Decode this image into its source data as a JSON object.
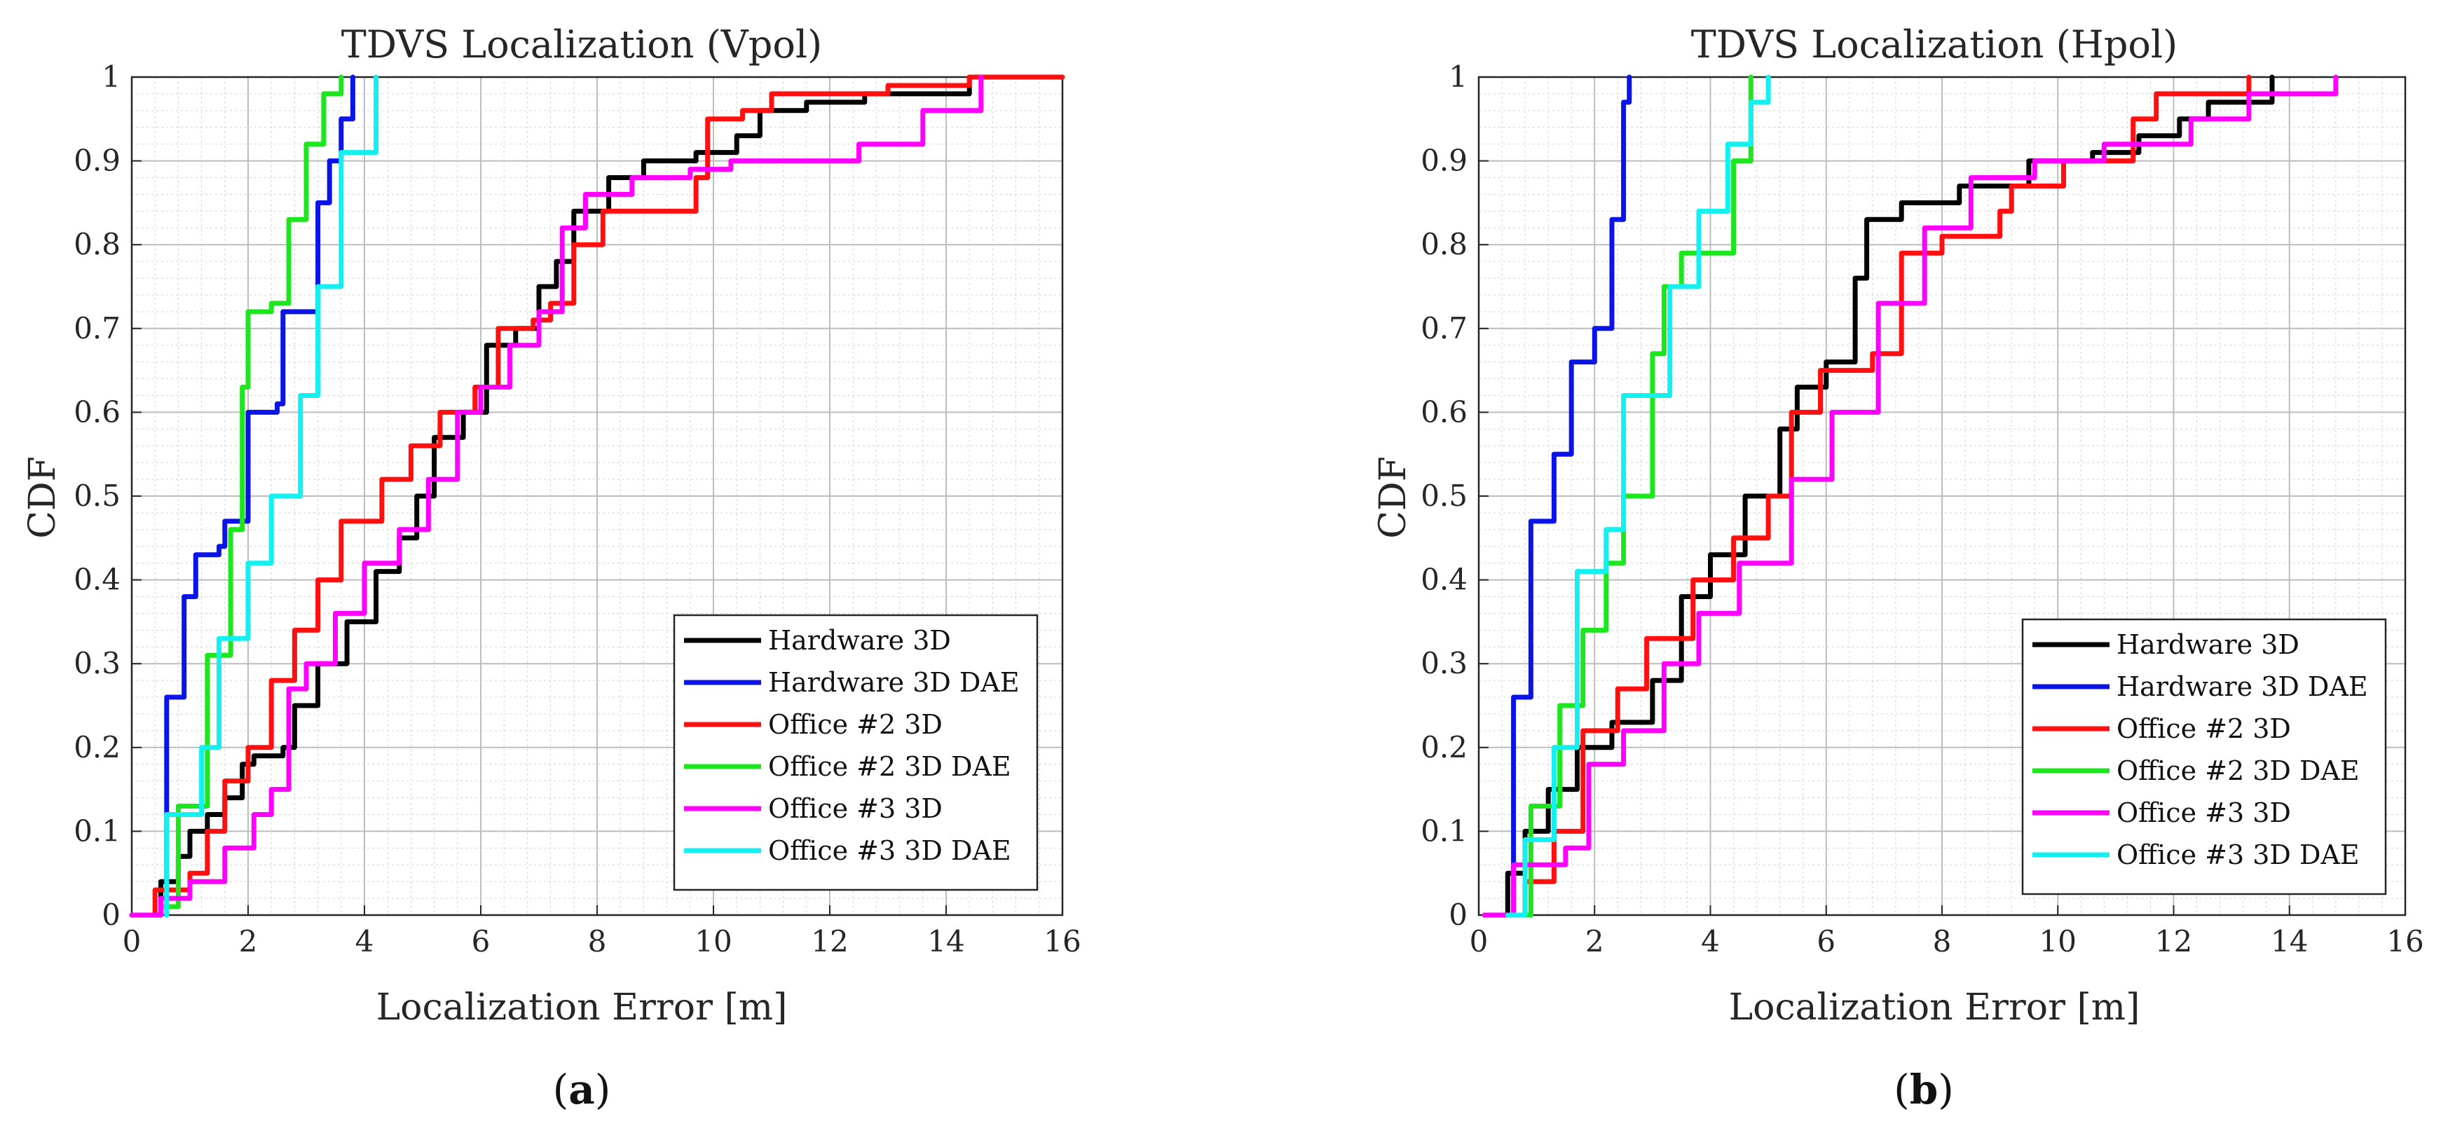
{
  "colors": {
    "hardware_3d": "#000000",
    "hardware_3d_dae": "#0a14e6",
    "office2_3d": "#ff1010",
    "office2_3d_dae": "#1ee61e",
    "office3_3d": "#ff00ff",
    "office3_3d_dae": "#14f0f0"
  },
  "chart_data": [
    {
      "type": "line",
      "title": "TDVS Localization (Vpol)",
      "xlabel": "Localization Error [m]",
      "ylabel": "CDF",
      "xlim": [
        0,
        16
      ],
      "ylim": [
        0,
        1
      ],
      "xticks": [
        "0",
        "2",
        "4",
        "6",
        "8",
        "10",
        "12",
        "14",
        "16"
      ],
      "yticks": [
        "0",
        "0.1",
        "0.2",
        "0.3",
        "0.4",
        "0.5",
        "0.6",
        "0.7",
        "0.8",
        "0.9",
        "1"
      ],
      "grid": true,
      "legend_position": "bottom-right",
      "caption": "(a)",
      "caption_letter": "a",
      "series": [
        {
          "name": "Hardware 3D",
          "color_key": "hardware_3d",
          "x": [
            0.1,
            0.5,
            0.8,
            1.0,
            1.3,
            1.6,
            1.9,
            2.1,
            2.6,
            2.8,
            3.2,
            3.7,
            4.2,
            4.6,
            4.9,
            5.2,
            5.7,
            6.1,
            6.6,
            7.0,
            7.3,
            7.6,
            8.2,
            8.8,
            9.7,
            10.4,
            10.8,
            11.6,
            12.6,
            14.4
          ],
          "y": [
            0.0,
            0.04,
            0.07,
            0.1,
            0.12,
            0.14,
            0.18,
            0.19,
            0.2,
            0.25,
            0.3,
            0.35,
            0.41,
            0.45,
            0.5,
            0.57,
            0.6,
            0.68,
            0.7,
            0.75,
            0.78,
            0.84,
            0.88,
            0.9,
            0.91,
            0.93,
            0.96,
            0.97,
            0.98,
            1.0
          ]
        },
        {
          "name": "Hardware 3D DAE",
          "color_key": "hardware_3d_dae",
          "x": [
            0.6,
            0.6,
            0.9,
            1.1,
            1.5,
            1.6,
            2.0,
            2.5,
            2.6,
            3.0,
            3.2,
            3.4,
            3.6,
            3.8
          ],
          "y": [
            0.0,
            0.26,
            0.38,
            0.43,
            0.44,
            0.47,
            0.6,
            0.61,
            0.72,
            0.72,
            0.85,
            0.9,
            0.95,
            1.0
          ]
        },
        {
          "name": "Office #2 3D",
          "color_key": "office2_3d",
          "x": [
            0.0,
            0.4,
            1.0,
            1.3,
            1.6,
            2.0,
            2.4,
            2.8,
            3.2,
            3.6,
            4.3,
            4.8,
            5.3,
            5.9,
            6.3,
            6.9,
            7.2,
            7.6,
            8.1,
            9.7,
            9.9,
            10.5,
            11.0,
            13.0,
            14.4,
            16.0
          ],
          "y": [
            0.0,
            0.03,
            0.05,
            0.1,
            0.16,
            0.2,
            0.28,
            0.34,
            0.4,
            0.47,
            0.52,
            0.56,
            0.6,
            0.63,
            0.7,
            0.71,
            0.73,
            0.8,
            0.84,
            0.88,
            0.95,
            0.96,
            0.98,
            0.99,
            1.0,
            1.0
          ]
        },
        {
          "name": "Office #2 3D DAE",
          "color_key": "office2_3d_dae",
          "x": [
            0.4,
            0.5,
            0.8,
            1.3,
            1.7,
            1.9,
            2.0,
            2.4,
            2.7,
            3.0,
            3.3,
            3.6
          ],
          "y": [
            0.0,
            0.01,
            0.13,
            0.31,
            0.46,
            0.63,
            0.72,
            0.73,
            0.83,
            0.92,
            0.98,
            1.0
          ]
        },
        {
          "name": "Office #3 3D",
          "color_key": "office3_3d",
          "x": [
            0.0,
            0.5,
            1.0,
            1.6,
            2.1,
            2.4,
            2.7,
            3.0,
            3.5,
            4.0,
            4.6,
            5.1,
            5.6,
            6.0,
            6.5,
            7.0,
            7.4,
            7.8,
            8.6,
            9.6,
            10.3,
            12.5,
            13.6,
            14.6
          ],
          "y": [
            0.0,
            0.02,
            0.04,
            0.08,
            0.12,
            0.15,
            0.27,
            0.3,
            0.36,
            0.42,
            0.46,
            0.52,
            0.6,
            0.63,
            0.68,
            0.72,
            0.82,
            0.86,
            0.88,
            0.89,
            0.9,
            0.92,
            0.96,
            1.0
          ]
        },
        {
          "name": "Office #3 3D DAE",
          "color_key": "office3_3d_dae",
          "x": [
            0.6,
            0.6,
            1.2,
            1.5,
            2.0,
            2.4,
            2.9,
            3.2,
            3.6,
            4.2
          ],
          "y": [
            0.0,
            0.12,
            0.2,
            0.33,
            0.42,
            0.5,
            0.62,
            0.75,
            0.91,
            1.0
          ]
        }
      ]
    },
    {
      "type": "line",
      "title": "TDVS Localization (Hpol)",
      "xlabel": "Localization Error [m]",
      "ylabel": "CDF",
      "xlim": [
        0,
        16
      ],
      "ylim": [
        0,
        1
      ],
      "xticks": [
        "0",
        "2",
        "4",
        "6",
        "8",
        "10",
        "12",
        "14",
        "16"
      ],
      "yticks": [
        "0",
        "0.1",
        "0.2",
        "0.3",
        "0.4",
        "0.5",
        "0.6",
        "0.7",
        "0.8",
        "0.9",
        "1"
      ],
      "grid": true,
      "legend_position": "bottom-right",
      "caption": "(b)",
      "caption_letter": "b",
      "series": [
        {
          "name": "Hardware 3D",
          "color_key": "hardware_3d",
          "x": [
            0.1,
            0.5,
            0.8,
            1.2,
            1.7,
            2.3,
            3.0,
            3.5,
            4.0,
            4.6,
            5.2,
            5.5,
            6.0,
            6.5,
            6.7,
            7.3,
            8.3,
            9.5,
            10.6,
            11.4,
            12.1,
            12.6,
            13.7
          ],
          "y": [
            0.0,
            0.05,
            0.1,
            0.15,
            0.2,
            0.23,
            0.28,
            0.38,
            0.43,
            0.5,
            0.58,
            0.63,
            0.66,
            0.76,
            0.83,
            0.85,
            0.87,
            0.9,
            0.91,
            0.93,
            0.95,
            0.97,
            1.0
          ]
        },
        {
          "name": "Hardware 3D DAE",
          "color_key": "hardware_3d_dae",
          "x": [
            0.6,
            0.6,
            0.9,
            1.3,
            1.6,
            2.0,
            2.3,
            2.5,
            2.6
          ],
          "y": [
            0.0,
            0.26,
            0.47,
            0.55,
            0.66,
            0.7,
            0.83,
            0.97,
            1.0
          ]
        },
        {
          "name": "Office #2 3D",
          "color_key": "office2_3d",
          "x": [
            0.2,
            0.8,
            1.3,
            1.8,
            2.4,
            2.9,
            3.7,
            4.4,
            5.0,
            5.4,
            5.9,
            6.8,
            7.3,
            8.0,
            9.0,
            9.2,
            10.1,
            11.3,
            11.7,
            13.3
          ],
          "y": [
            0.0,
            0.04,
            0.1,
            0.22,
            0.27,
            0.33,
            0.4,
            0.45,
            0.5,
            0.6,
            0.65,
            0.67,
            0.79,
            0.81,
            0.84,
            0.87,
            0.9,
            0.95,
            0.98,
            1.0
          ]
        },
        {
          "name": "Office #2 3D DAE",
          "color_key": "office2_3d_dae",
          "x": [
            0.5,
            0.9,
            1.4,
            1.8,
            2.2,
            2.5,
            3.0,
            3.2,
            3.5,
            4.4,
            4.7
          ],
          "y": [
            0.0,
            0.13,
            0.25,
            0.34,
            0.42,
            0.5,
            0.67,
            0.75,
            0.79,
            0.9,
            1.0
          ]
        },
        {
          "name": "Office #3 3D",
          "color_key": "office3_3d",
          "x": [
            0.1,
            0.6,
            1.5,
            1.9,
            2.5,
            3.2,
            3.8,
            4.5,
            5.4,
            6.1,
            6.9,
            7.7,
            8.5,
            9.6,
            10.8,
            12.3,
            13.3,
            14.8
          ],
          "y": [
            0.0,
            0.06,
            0.08,
            0.18,
            0.22,
            0.3,
            0.36,
            0.42,
            0.52,
            0.6,
            0.73,
            0.82,
            0.88,
            0.9,
            0.92,
            0.95,
            0.98,
            1.0
          ]
        },
        {
          "name": "Office #3 3D DAE",
          "color_key": "office3_3d_dae",
          "x": [
            0.5,
            0.8,
            1.3,
            1.7,
            2.2,
            2.5,
            2.9,
            3.3,
            3.8,
            4.3,
            4.7,
            5.0
          ],
          "y": [
            0.0,
            0.09,
            0.2,
            0.41,
            0.46,
            0.62,
            0.62,
            0.75,
            0.84,
            0.92,
            0.97,
            1.0
          ]
        }
      ]
    }
  ]
}
